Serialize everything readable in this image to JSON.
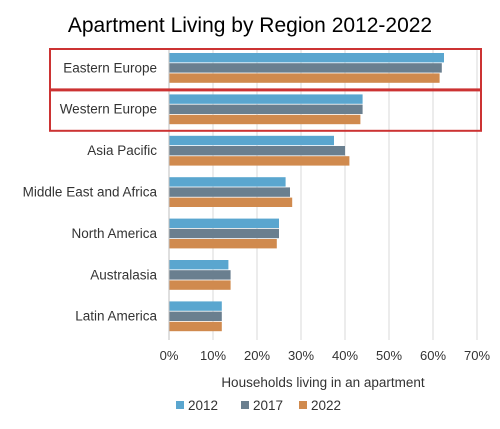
{
  "chart_data": {
    "type": "bar",
    "orientation": "horizontal",
    "title": "Apartment Living by Region 2012-2022",
    "xlabel": "Households living in an apartment",
    "ylabel": "",
    "xlim": [
      0,
      70
    ],
    "x_ticks": [
      "0%",
      "10%",
      "20%",
      "30%",
      "40%",
      "50%",
      "60%",
      "70%"
    ],
    "grid": true,
    "legend_position": "bottom",
    "categories": [
      "Eastern Europe",
      "Western Europe",
      "Asia Pacific",
      "Middle East and Africa",
      "North America",
      "Australasia",
      "Latin America"
    ],
    "series": [
      {
        "name": "2012",
        "color": "#5aa6cf",
        "values": [
          62.5,
          44,
          37.5,
          26.5,
          25,
          13.5,
          12
        ]
      },
      {
        "name": "2017",
        "color": "#6a7f8f",
        "values": [
          62,
          44,
          40,
          27.5,
          25,
          14,
          12
        ]
      },
      {
        "name": "2022",
        "color": "#d08a4e",
        "values": [
          61.5,
          43.5,
          41,
          28,
          24.5,
          14,
          12
        ]
      }
    ],
    "highlighted_categories": [
      "Eastern Europe",
      "Western Europe"
    ],
    "highlight_color": "#cc3333"
  }
}
